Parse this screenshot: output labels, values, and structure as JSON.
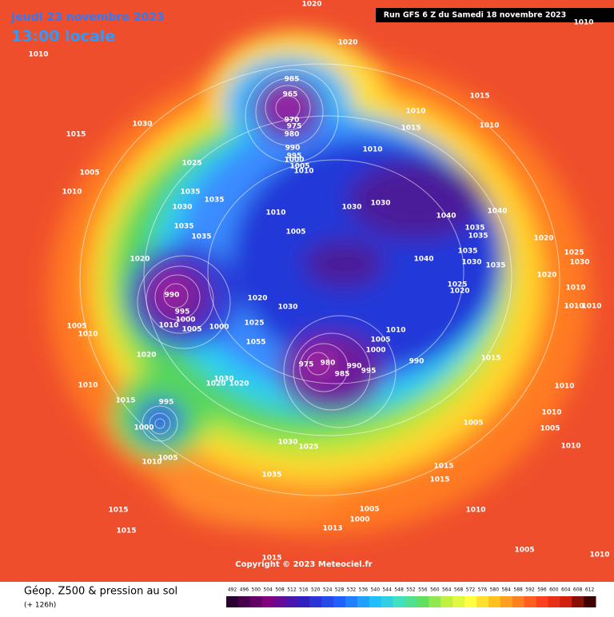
{
  "header": {
    "date": "Jeudi 23 novembre 2023",
    "time": "13:00 locale"
  },
  "run": "Run GFS 6 Z du Samedi 18 novembre 2023",
  "copyright": "Copyright © 2023 Meteociel.fr",
  "footer": {
    "title": "Géop. Z500 & pression au sol",
    "subtitle": "(+ 126h)"
  },
  "legend": {
    "ticks": [
      492,
      496,
      500,
      504,
      508,
      512,
      516,
      520,
      524,
      528,
      532,
      536,
      540,
      544,
      548,
      552,
      556,
      560,
      564,
      568,
      572,
      576,
      580,
      584,
      588,
      592,
      596,
      600,
      604,
      608,
      612
    ]
  },
  "isobar_labels": [
    1010,
    1020,
    1030,
    1015,
    985,
    965,
    970,
    975,
    980,
    990,
    995,
    1000,
    1005,
    1010,
    1025,
    1005,
    1010,
    1035,
    1030,
    1035,
    1010,
    1030,
    1030,
    1040,
    1040,
    1035,
    1035,
    1035,
    1035,
    1005,
    1020,
    1040,
    1035,
    1030,
    1035,
    1020,
    1025,
    1030,
    1020,
    1010,
    1025,
    1020,
    990,
    1020,
    1030,
    995,
    1000,
    1010,
    1005,
    1000,
    1005,
    1010,
    1025,
    1055,
    1010,
    1005,
    1000,
    1015,
    990,
    975,
    980,
    990,
    995,
    985,
    1010,
    1020,
    1030,
    1020,
    1020,
    1010,
    1015,
    995,
    1000,
    1005,
    1010,
    1010,
    1010,
    1005,
    1030,
    1025,
    1010,
    1005,
    1035,
    1015,
    1015,
    1015,
    1015,
    1005,
    1000,
    1013,
    1010,
    1005,
    1010,
    1015,
    1015,
    1010,
    1010,
    1015,
    1010,
    1010,
    1020,
    1010
  ]
}
